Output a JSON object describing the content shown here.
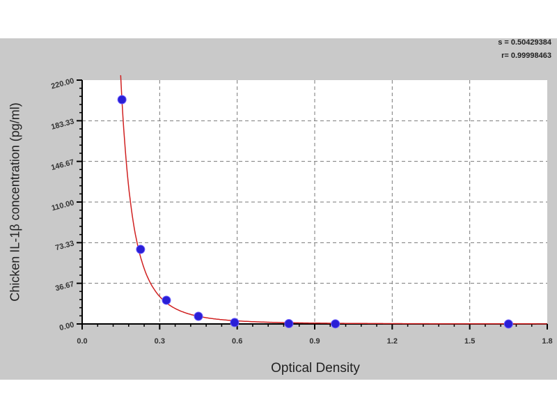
{
  "chart_data": {
    "type": "scatter",
    "title": "",
    "xlabel": "Optical Density",
    "ylabel": "Chicken IL-1β concentration (pg/ml)",
    "xlim": [
      0,
      1.8
    ],
    "ylim": [
      0,
      220
    ],
    "x_ticks": [
      "0.0",
      "0.3",
      "0.6",
      "0.9",
      "1.2",
      "1.5",
      "1.8"
    ],
    "y_ticks": [
      "0.00",
      "36.67",
      "73.33",
      "110.00",
      "146.67",
      "183.33",
      "220.00"
    ],
    "grid": true,
    "stats": [
      "s = 0.50429384",
      "r= 0.99998463"
    ],
    "points": [
      {
        "x": 0.154,
        "y": 202.4
      },
      {
        "x": 0.226,
        "y": 67.3
      },
      {
        "x": 0.326,
        "y": 21.4
      },
      {
        "x": 0.45,
        "y": 6.9
      },
      {
        "x": 0.59,
        "y": 1.3
      },
      {
        "x": 0.8,
        "y": 0.3
      },
      {
        "x": 0.98,
        "y": 0.1
      },
      {
        "x": 1.65,
        "y": 0.0
      }
    ],
    "fit_curve": {
      "type": "power",
      "a": 0.558,
      "b": -3.15
    },
    "colors": {
      "points": "#2a1fd6",
      "curve": "#d02020",
      "background": "#c9c9c9",
      "plot": "#ffffff"
    }
  }
}
